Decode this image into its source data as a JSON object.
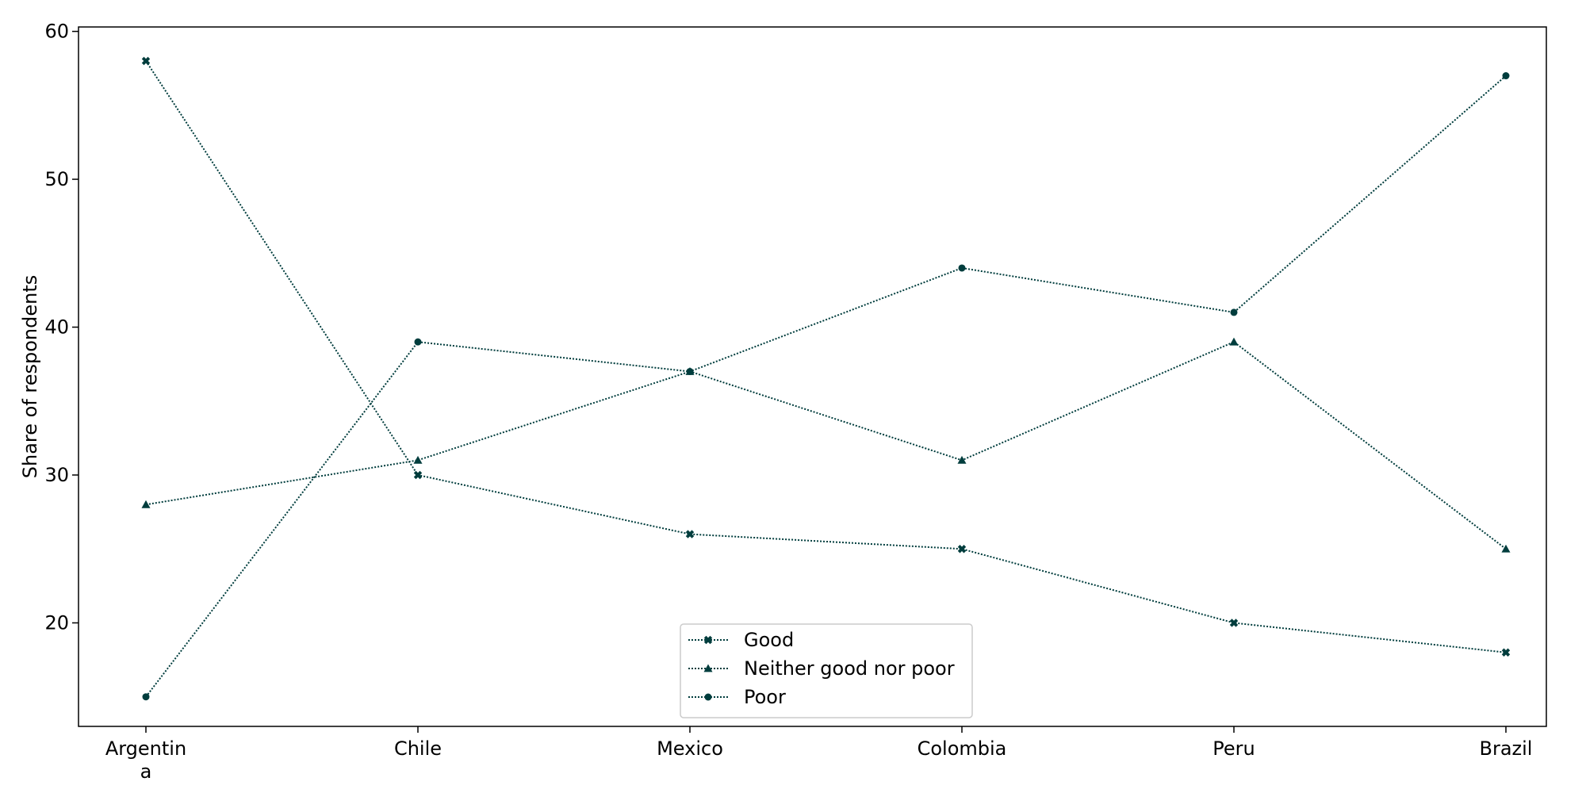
{
  "chart_data": {
    "type": "line",
    "title": "",
    "xlabel": "",
    "ylabel": "Share of respondents",
    "categories": [
      [
        "Argentin",
        "a"
      ],
      [
        "Chile"
      ],
      [
        "Mexico"
      ],
      [
        "Colombia"
      ],
      [
        "Peru"
      ],
      [
        "Brazil"
      ]
    ],
    "y_ticks": [
      20,
      30,
      40,
      50,
      60
    ],
    "ylim": [
      13,
      60.3
    ],
    "grid": false,
    "legend_position": "bottom-center",
    "line_style": "dotted",
    "series": [
      {
        "name": "Good",
        "marker": "x",
        "color": "#003d3d",
        "values": [
          58,
          30,
          26,
          25,
          20,
          18
        ]
      },
      {
        "name": "Neither good nor poor",
        "marker": "triangle",
        "color": "#003d3d",
        "values": [
          28,
          31,
          37,
          31,
          39,
          25
        ]
      },
      {
        "name": "Poor",
        "marker": "circle",
        "color": "#003d3d",
        "values": [
          15,
          39,
          37,
          44,
          41,
          57
        ]
      }
    ]
  }
}
